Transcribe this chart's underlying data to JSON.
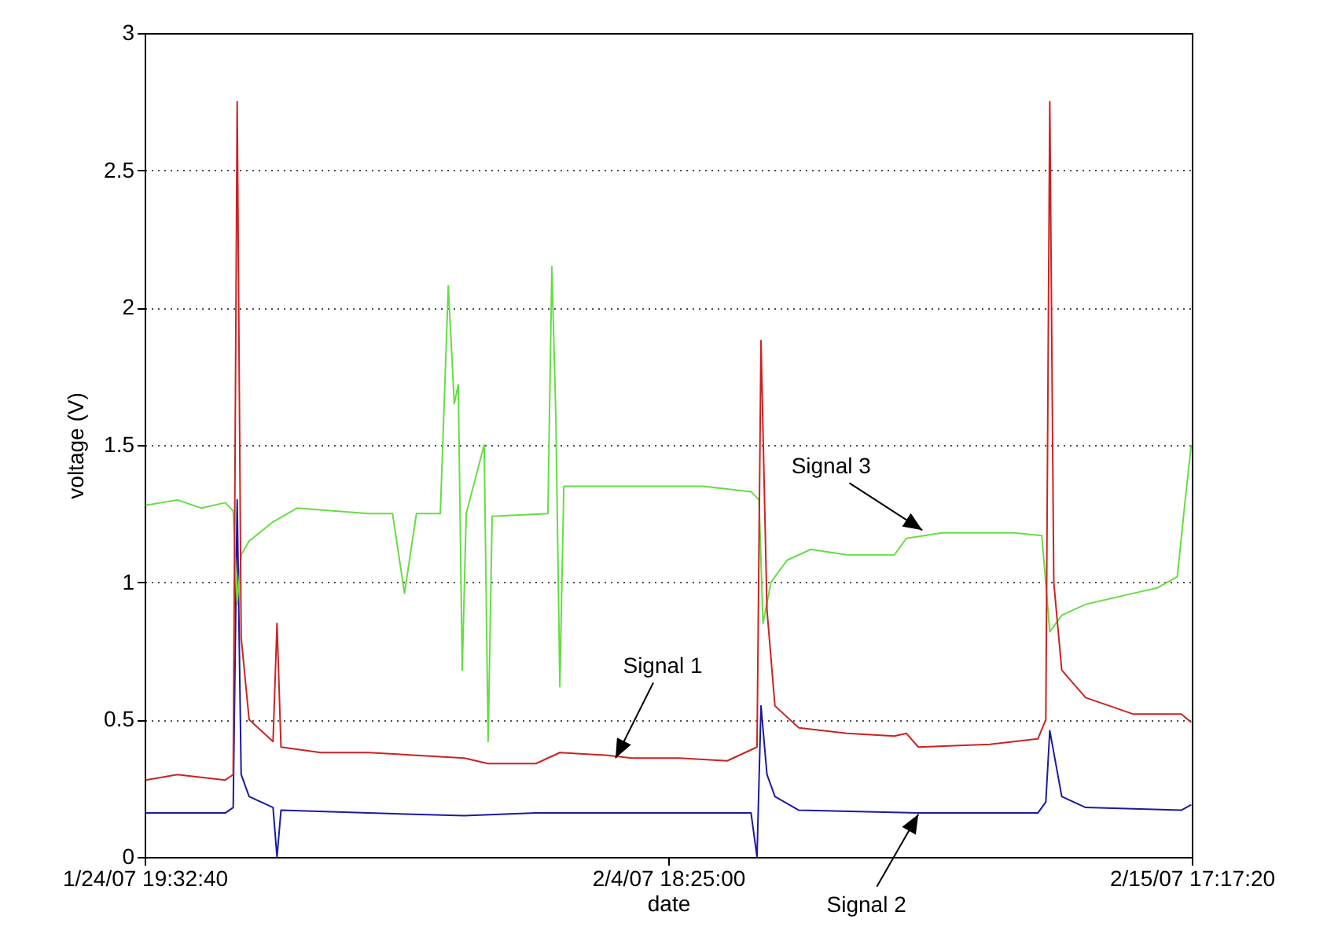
{
  "chart_data": {
    "type": "line",
    "xlabel": "date",
    "ylabel": "voltage (V)",
    "xlim": [
      "2007-01-24T19:32:40",
      "2007-02-15T17:17:20"
    ],
    "xticks": [
      {
        "value": "2007-01-24T19:32:40",
        "label": "1/24/07 19:32:40"
      },
      {
        "value": "2007-02-04T18:25:00",
        "label": "2/4/07 18:25:00"
      },
      {
        "value": "2007-02-15T17:17:20",
        "label": "2/15/07 17:17:20"
      }
    ],
    "ylim": [
      0,
      3
    ],
    "yticks": [
      0,
      0.5,
      1,
      1.5,
      2,
      2.5,
      3
    ],
    "grid": "y",
    "legend": false,
    "series": [
      {
        "color": "#1a1aa0",
        "x": [
          "2007-01-24T20:00",
          "2007-01-26T12:00",
          "2007-01-26T16:00",
          "2007-01-26T18:00",
          "2007-01-26T20:00",
          "2007-01-27T00:00",
          "2007-01-27T12:00",
          "2007-01-27T14:00",
          "2007-01-27T16:00",
          "2007-01-29T12:00",
          "2007-01-31T12:00",
          "2007-02-02T00:00",
          "2007-02-04T00:00",
          "2007-02-06T12:00",
          "2007-02-06T15:00",
          "2007-02-06T17:00",
          "2007-02-06T20:00",
          "2007-02-07T00:00",
          "2007-02-07T12:00",
          "2007-02-10T00:00",
          "2007-02-12T12:00",
          "2007-02-12T16:00",
          "2007-02-12T18:00",
          "2007-02-13T00:00",
          "2007-02-13T12:00",
          "2007-02-15T12:00",
          "2007-02-15T17:00"
        ],
        "values": [
          0.16,
          0.16,
          0.18,
          1.3,
          0.3,
          0.22,
          0.18,
          0.0,
          0.17,
          0.16,
          0.15,
          0.16,
          0.16,
          0.16,
          0.0,
          0.55,
          0.3,
          0.22,
          0.17,
          0.16,
          0.16,
          0.2,
          0.46,
          0.22,
          0.18,
          0.17,
          0.19
        ]
      },
      {
        "color": "#66dd44",
        "x": [
          "2007-01-24T20:00",
          "2007-01-25T12:00",
          "2007-01-26T00:00",
          "2007-01-26T12:00",
          "2007-01-26T16:00",
          "2007-01-26T18:00",
          "2007-01-26T20:00",
          "2007-01-27T00:00",
          "2007-01-27T12:00",
          "2007-01-28T00:00",
          "2007-01-29T12:00",
          "2007-01-30T00:00",
          "2007-01-30T06:00",
          "2007-01-30T12:00",
          "2007-01-31T00:00",
          "2007-01-31T04:00",
          "2007-01-31T07:00",
          "2007-01-31T09:00",
          "2007-01-31T11:00",
          "2007-01-31T13:00",
          "2007-01-31T22:00",
          "2007-02-01T00:00",
          "2007-02-01T02:00",
          "2007-02-02T06:00",
          "2007-02-02T08:00",
          "2007-02-02T10:00",
          "2007-02-02T12:00",
          "2007-02-02T14:00",
          "2007-02-04T00:00",
          "2007-02-05T12:00",
          "2007-02-06T12:00",
          "2007-02-06T16:00",
          "2007-02-06T18:00",
          "2007-02-06T22:00",
          "2007-02-07T06:00",
          "2007-02-07T18:00",
          "2007-02-08T12:00",
          "2007-02-09T12:00",
          "2007-02-09T18:00",
          "2007-02-10T12:00",
          "2007-02-12T00:00",
          "2007-02-12T14:00",
          "2007-02-12T18:00",
          "2007-02-13T00:00",
          "2007-02-13T12:00",
          "2007-02-14T12:00",
          "2007-02-15T00:00",
          "2007-02-15T10:00",
          "2007-02-15T14:00",
          "2007-02-15T17:00"
        ],
        "values": [
          1.28,
          1.3,
          1.27,
          1.29,
          1.26,
          0.92,
          1.1,
          1.15,
          1.22,
          1.27,
          1.25,
          1.25,
          0.96,
          1.25,
          1.25,
          2.08,
          1.65,
          1.72,
          0.68,
          1.25,
          1.5,
          0.42,
          1.24,
          1.25,
          2.15,
          1.6,
          0.62,
          1.35,
          1.35,
          1.35,
          1.33,
          1.3,
          0.85,
          1.0,
          1.08,
          1.12,
          1.1,
          1.1,
          1.16,
          1.18,
          1.18,
          1.17,
          0.82,
          0.88,
          0.92,
          0.96,
          0.98,
          1.02,
          1.3,
          1.5
        ]
      },
      {
        "color": "#cc2222",
        "x": [
          "2007-01-24T20:00",
          "2007-01-25T12:00",
          "2007-01-26T12:00",
          "2007-01-26T16:00",
          "2007-01-26T18:00",
          "2007-01-26T20:00",
          "2007-01-27T00:00",
          "2007-01-27T12:00",
          "2007-01-27T14:00",
          "2007-01-27T16:00",
          "2007-01-28T12:00",
          "2007-01-29T12:00",
          "2007-01-30T12:00",
          "2007-01-31T12:00",
          "2007-02-01T00:00",
          "2007-02-02T00:00",
          "2007-02-02T12:00",
          "2007-02-03T12:00",
          "2007-02-04T00:00",
          "2007-02-05T00:00",
          "2007-02-06T00:00",
          "2007-02-06T15:00",
          "2007-02-06T17:00",
          "2007-02-06T20:00",
          "2007-02-07T00:00",
          "2007-02-07T12:00",
          "2007-02-08T12:00",
          "2007-02-09T12:00",
          "2007-02-09T18:00",
          "2007-02-10T00:00",
          "2007-02-11T12:00",
          "2007-02-12T12:00",
          "2007-02-12T16:00",
          "2007-02-12T18:00",
          "2007-02-12T20:00",
          "2007-02-13T00:00",
          "2007-02-13T12:00",
          "2007-02-14T00:00",
          "2007-02-14T12:00",
          "2007-02-15T12:00",
          "2007-02-15T17:00"
        ],
        "values": [
          0.28,
          0.3,
          0.28,
          0.3,
          2.75,
          0.8,
          0.5,
          0.42,
          0.85,
          0.4,
          0.38,
          0.38,
          0.37,
          0.36,
          0.34,
          0.34,
          0.38,
          0.37,
          0.36,
          0.36,
          0.35,
          0.4,
          1.88,
          0.9,
          0.55,
          0.47,
          0.45,
          0.44,
          0.45,
          0.4,
          0.41,
          0.43,
          0.5,
          2.75,
          1.0,
          0.68,
          0.58,
          0.55,
          0.52,
          0.52,
          0.49
        ]
      }
    ],
    "annotations": [
      {
        "text": "Signal 1",
        "x": "2007-02-03T16:00",
        "y": 0.36
      },
      {
        "text": "Signal 2",
        "x": "2007-02-10T00:00",
        "y": 0.155
      },
      {
        "text": "Signal 3",
        "x": "2007-02-10T02:00",
        "y": 1.19
      }
    ]
  }
}
